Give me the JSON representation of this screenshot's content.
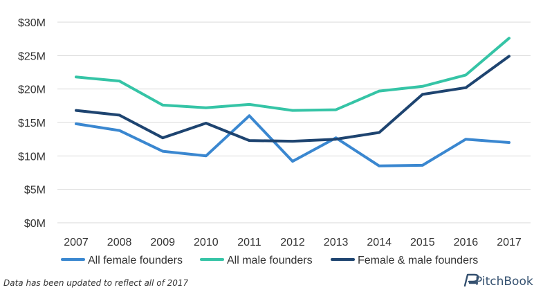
{
  "chart_data": {
    "type": "line",
    "categories": [
      "2007",
      "2008",
      "2009",
      "2010",
      "2011",
      "2012",
      "2013",
      "2014",
      "2015",
      "2016",
      "2017"
    ],
    "y_tick_labels": [
      "$0M",
      "$5M",
      "$10M",
      "$15M",
      "$20M",
      "$25M",
      "$30M"
    ],
    "ylim": [
      0,
      30
    ],
    "grid": true,
    "legend_position": "bottom",
    "series": [
      {
        "name": "All female founders",
        "color": "#3a87d0",
        "values": [
          14.8,
          13.8,
          10.7,
          10.0,
          16.0,
          9.2,
          12.7,
          8.5,
          8.6,
          12.5,
          12.0
        ]
      },
      {
        "name": "All male founders",
        "color": "#35c4a6",
        "values": [
          21.8,
          21.2,
          17.6,
          17.2,
          17.7,
          16.8,
          16.9,
          19.7,
          20.4,
          22.1,
          27.6
        ]
      },
      {
        "name": "Female & male founders",
        "color": "#1e4470",
        "values": [
          16.8,
          16.1,
          12.7,
          14.9,
          12.3,
          12.2,
          12.5,
          13.5,
          19.2,
          20.2,
          24.9
        ]
      }
    ]
  },
  "footnote": "Data has been updated to reflect all of 2017",
  "brand": {
    "name": "PitchBook",
    "icon": "pitchbook-logo-icon"
  }
}
